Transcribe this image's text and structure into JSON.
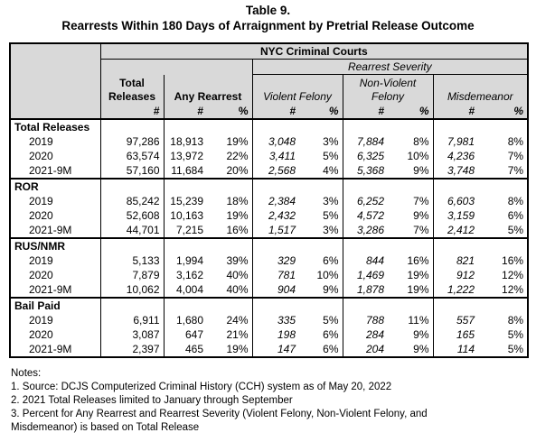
{
  "title": "Table 9.",
  "subtitle": "Rearrests Within 180 Days of Arraignment by Pretrial Release Outcome",
  "table": {
    "court_header": "NYC Criminal Courts",
    "severity_header": "Rearrest Severity",
    "columns": [
      "Total Releases",
      "Any Rearrest",
      "Violent Felony",
      "Non-Violent Felony",
      "Misdemeanor"
    ],
    "subheaders": [
      "#",
      "#",
      "%",
      "#",
      "%",
      "#",
      "%",
      "#",
      "%"
    ],
    "groups": [
      {
        "label": "Total Releases",
        "rows": [
          {
            "label": "2019",
            "cells": [
              "97,286",
              "18,913",
              "19%",
              "3,048",
              "3%",
              "7,884",
              "8%",
              "7,981",
              "8%"
            ]
          },
          {
            "label": "2020",
            "cells": [
              "63,574",
              "13,972",
              "22%",
              "3,411",
              "5%",
              "6,325",
              "10%",
              "4,236",
              "7%"
            ]
          },
          {
            "label": "2021-9M",
            "cells": [
              "57,160",
              "11,684",
              "20%",
              "2,568",
              "4%",
              "5,368",
              "9%",
              "3,748",
              "7%"
            ]
          }
        ]
      },
      {
        "label": "ROR",
        "rows": [
          {
            "label": "2019",
            "cells": [
              "85,242",
              "15,239",
              "18%",
              "2,384",
              "3%",
              "6,252",
              "7%",
              "6,603",
              "8%"
            ]
          },
          {
            "label": "2020",
            "cells": [
              "52,608",
              "10,163",
              "19%",
              "2,432",
              "5%",
              "4,572",
              "9%",
              "3,159",
              "6%"
            ]
          },
          {
            "label": "2021-9M",
            "cells": [
              "44,701",
              "7,215",
              "16%",
              "1,517",
              "3%",
              "3,286",
              "7%",
              "2,412",
              "5%"
            ]
          }
        ]
      },
      {
        "label": "RUS/NMR",
        "rows": [
          {
            "label": "2019",
            "cells": [
              "5,133",
              "1,994",
              "39%",
              "329",
              "6%",
              "844",
              "16%",
              "821",
              "16%"
            ]
          },
          {
            "label": "2020",
            "cells": [
              "7,879",
              "3,162",
              "40%",
              "781",
              "10%",
              "1,469",
              "19%",
              "912",
              "12%"
            ]
          },
          {
            "label": "2021-9M",
            "cells": [
              "10,062",
              "4,004",
              "40%",
              "904",
              "9%",
              "1,878",
              "19%",
              "1,222",
              "12%"
            ]
          }
        ]
      },
      {
        "label": "Bail Paid",
        "rows": [
          {
            "label": "2019",
            "cells": [
              "6,911",
              "1,680",
              "24%",
              "335",
              "5%",
              "788",
              "11%",
              "557",
              "8%"
            ]
          },
          {
            "label": "2020",
            "cells": [
              "3,087",
              "647",
              "21%",
              "198",
              "6%",
              "284",
              "9%",
              "165",
              "5%"
            ]
          },
          {
            "label": "2021-9M",
            "cells": [
              "2,397",
              "465",
              "19%",
              "147",
              "6%",
              "204",
              "9%",
              "114",
              "5%"
            ]
          }
        ]
      }
    ]
  },
  "notes": [
    "Notes:",
    "1. Source: DCJS Computerized Criminal History (CCH) system as of May 20, 2022",
    "2. 2021 Total Releases limited to January through September",
    "3. Percent for Any Rearrest and Rearrest Severity (Violent Felony, Non-Violent Felony, and Misdemeanor) is based on Total Release"
  ]
}
